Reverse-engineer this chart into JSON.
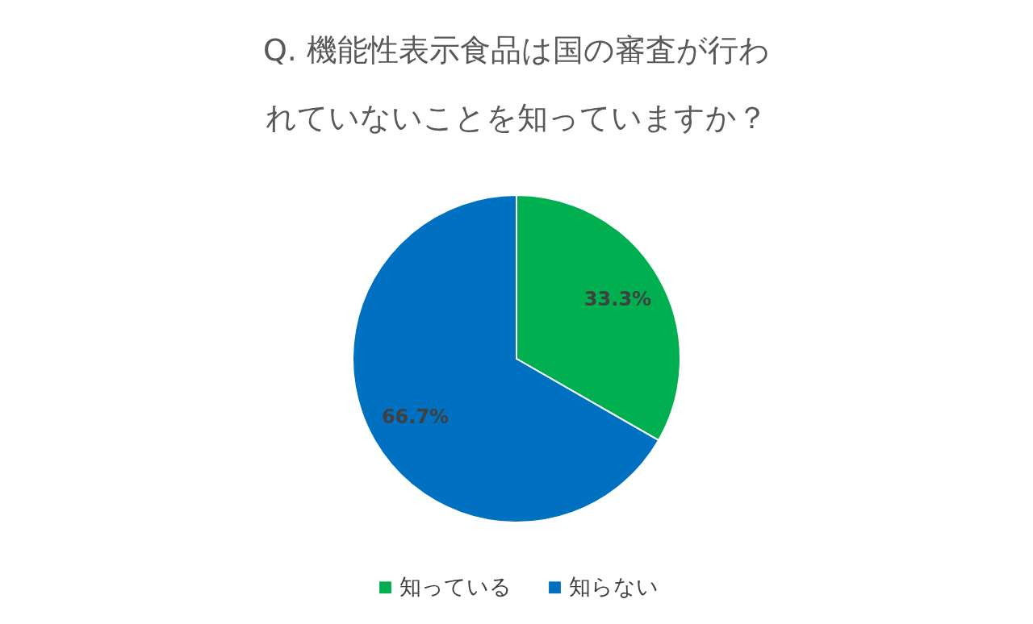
{
  "chart_data": {
    "type": "pie",
    "title": "Q. 機能性表示食品は国の審査が行われていないことを知っていますか？",
    "categories": [
      "知っている",
      "知らない"
    ],
    "values": [
      33.3,
      66.7
    ],
    "colors": [
      "#00b050",
      "#0070c0"
    ],
    "value_labels": [
      "33.3%",
      "66.7%"
    ],
    "legend": "bottom"
  }
}
